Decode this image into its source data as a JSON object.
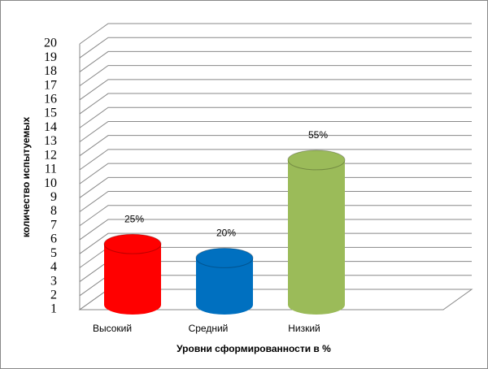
{
  "chart_data": {
    "type": "cylinder_bar",
    "x_label": "Уровни сформированности в %",
    "y_label": "количество испытуемых",
    "categories": [
      "Высокий",
      "Средний",
      "Низкий"
    ],
    "values": [
      5,
      4,
      11
    ],
    "percent_labels": [
      "25%",
      "20%",
      "55%"
    ],
    "colors": [
      "#ff0000",
      "#0070c0",
      "#9bbb59"
    ],
    "ylim": [
      1,
      20
    ],
    "yticks": [
      1,
      2,
      3,
      4,
      5,
      6,
      7,
      8,
      9,
      10,
      11,
      12,
      13,
      14,
      15,
      16,
      17,
      18,
      19,
      20
    ],
    "grid": true
  }
}
